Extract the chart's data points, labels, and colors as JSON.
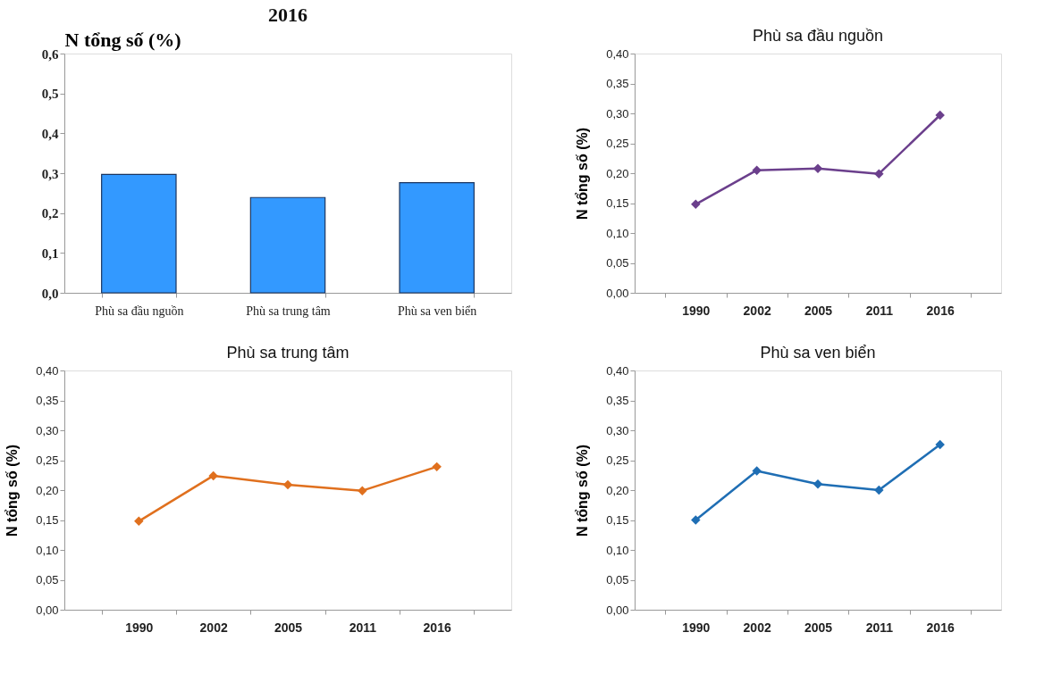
{
  "chart_data": [
    {
      "type": "bar",
      "title": "2016",
      "ylabel": "N tổng số (%)",
      "categories": [
        "Phù sa đầu nguồn",
        "Phù sa trung tâm",
        "Phù sa ven biển"
      ],
      "series": [
        {
          "color": "#3399ff",
          "values": [
            0.297,
            0.239,
            0.276
          ]
        }
      ],
      "ylim": [
        0,
        0.6
      ],
      "yticks": [
        {
          "value": 0,
          "label": "0,0"
        },
        {
          "value": 0.1,
          "label": "0,1"
        },
        {
          "value": 0.2,
          "label": "0,2"
        },
        {
          "value": 0.3,
          "label": "0,3"
        },
        {
          "value": 0.4,
          "label": "0,4"
        },
        {
          "value": 0.5,
          "label": "0,5"
        },
        {
          "value": 0.6,
          "label": "0,6"
        }
      ],
      "grid": false,
      "legend": false
    },
    {
      "type": "line",
      "title": "Phù sa đầu nguồn",
      "ylabel": "N tổng số (%)",
      "categories": [
        "1990",
        "2002",
        "2005",
        "2011",
        "2016"
      ],
      "series": [
        {
          "color": "#6b3f8c",
          "values": [
            0.148,
            0.205,
            0.208,
            0.199,
            0.297
          ]
        }
      ],
      "ylim": [
        0,
        0.4
      ],
      "yticks": [
        {
          "value": 0,
          "label": "0,00"
        },
        {
          "value": 0.05,
          "label": "0,05"
        },
        {
          "value": 0.1,
          "label": "0,10"
        },
        {
          "value": 0.15,
          "label": "0,15"
        },
        {
          "value": 0.2,
          "label": "0,20"
        },
        {
          "value": 0.25,
          "label": "0,25"
        },
        {
          "value": 0.3,
          "label": "0,30"
        },
        {
          "value": 0.35,
          "label": "0,35"
        },
        {
          "value": 0.4,
          "label": "0,40"
        }
      ],
      "grid": false,
      "legend": false,
      "marker": "diamond"
    },
    {
      "type": "line",
      "title": "Phù sa trung tâm",
      "ylabel": "N tổng số (%)",
      "categories": [
        "1990",
        "2002",
        "2005",
        "2011",
        "2016"
      ],
      "series": [
        {
          "color": "#e0701e",
          "values": [
            0.148,
            0.224,
            0.209,
            0.199,
            0.239
          ]
        }
      ],
      "ylim": [
        0,
        0.4
      ],
      "yticks": [
        {
          "value": 0,
          "label": "0,00"
        },
        {
          "value": 0.05,
          "label": "0,05"
        },
        {
          "value": 0.1,
          "label": "0,10"
        },
        {
          "value": 0.15,
          "label": "0,15"
        },
        {
          "value": 0.2,
          "label": "0,20"
        },
        {
          "value": 0.25,
          "label": "0,25"
        },
        {
          "value": 0.3,
          "label": "0,30"
        },
        {
          "value": 0.35,
          "label": "0,35"
        },
        {
          "value": 0.4,
          "label": "0,40"
        }
      ],
      "grid": false,
      "legend": false,
      "marker": "diamond"
    },
    {
      "type": "line",
      "title": "Phù sa ven biển",
      "ylabel": "N tổng số (%)",
      "categories": [
        "1990",
        "2002",
        "2005",
        "2011",
        "2016"
      ],
      "series": [
        {
          "color": "#1f6eb4",
          "values": [
            0.15,
            0.232,
            0.21,
            0.2,
            0.276
          ]
        }
      ],
      "ylim": [
        0,
        0.4
      ],
      "yticks": [
        {
          "value": 0,
          "label": "0,00"
        },
        {
          "value": 0.05,
          "label": "0,05"
        },
        {
          "value": 0.1,
          "label": "0,10"
        },
        {
          "value": 0.15,
          "label": "0,15"
        },
        {
          "value": 0.2,
          "label": "0,20"
        },
        {
          "value": 0.25,
          "label": "0,25"
        },
        {
          "value": 0.3,
          "label": "0,30"
        },
        {
          "value": 0.35,
          "label": "0,35"
        },
        {
          "value": 0.4,
          "label": "0,40"
        }
      ],
      "grid": false,
      "legend": false,
      "marker": "diamond"
    }
  ]
}
